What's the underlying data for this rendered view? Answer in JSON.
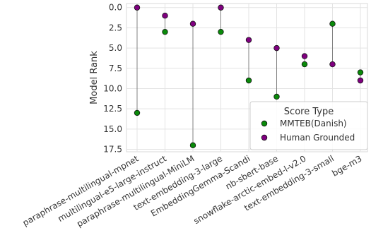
{
  "chart_data": {
    "type": "scatter",
    "ylabel": "Model Rank",
    "xlabel": "",
    "y_inverted": true,
    "ylim": [
      17.8,
      -0.5
    ],
    "yticks": [
      0.0,
      2.5,
      5.0,
      7.5,
      10.0,
      12.5,
      15.0,
      17.5
    ],
    "ytick_labels": [
      "0.0",
      "2.5",
      "5.0",
      "7.5",
      "10.0",
      "12.5",
      "15.0",
      "17.5"
    ],
    "grid": true,
    "categories": [
      "paraphrase-multilingual-mpnet",
      "multilingual-e5-large-instruct",
      "paraphrase-multilingual-MiniLM",
      "text-embedding-3-large",
      "EmbeddingGemma-Scandi",
      "nb-sbert-base",
      "snowflake-arctic-embed-l-v2.0",
      "text-embedding-3-small",
      "bge-m3"
    ],
    "series": [
      {
        "name": "MMTEB(Danish)",
        "color": "#0a8a0a",
        "values": [
          13,
          3,
          17,
          3,
          9,
          11,
          7,
          2,
          8
        ]
      },
      {
        "name": "Human Grounded",
        "color": "#800080",
        "values": [
          0,
          1,
          2,
          0,
          4,
          5,
          6,
          7,
          9
        ]
      }
    ],
    "connector_color": "#808080",
    "legend": {
      "title": "Score Type",
      "position": "lower-right"
    }
  }
}
